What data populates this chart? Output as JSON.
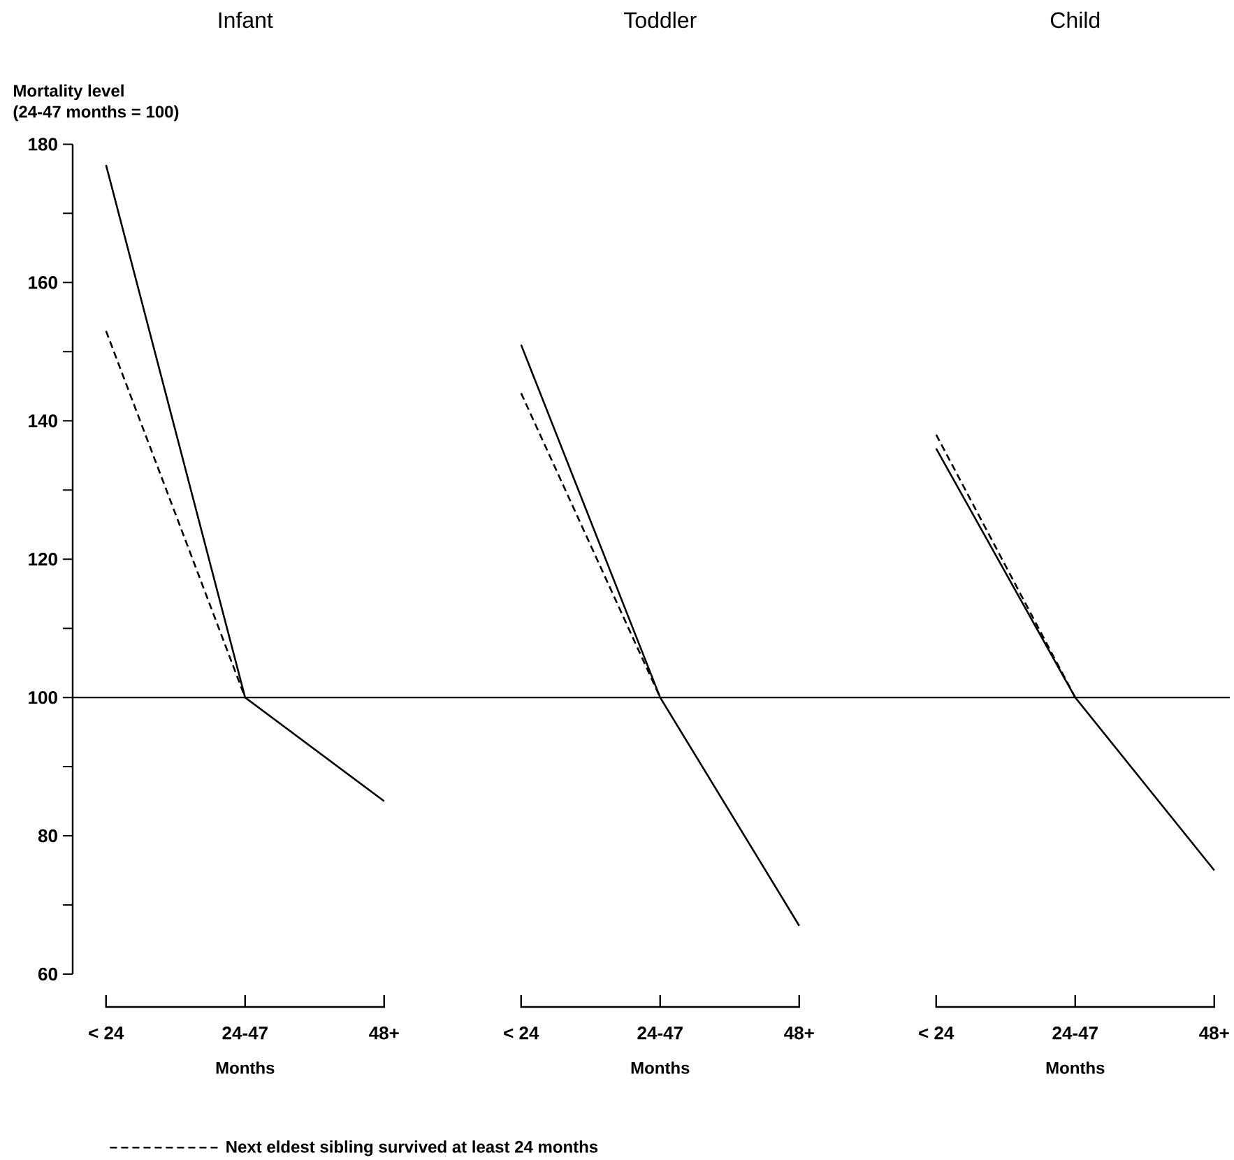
{
  "chart_data": [
    {
      "type": "line",
      "title": "Infant",
      "categories": [
        "< 24",
        "24-47",
        "48+"
      ],
      "xlabel": "Months",
      "ylabel": "Mortality level (24-47 months = 100)",
      "ylim": [
        60,
        180
      ],
      "yticks": [
        60,
        {
          "value": 70,
          "label": null
        },
        80,
        {
          "value": 90,
          "label": null
        },
        100,
        {
          "value": 110,
          "label": null
        },
        120,
        {
          "value": 130,
          "label": null
        },
        140,
        {
          "value": 150,
          "label": null
        },
        160,
        {
          "value": 170,
          "label": null
        },
        180
      ],
      "legend": "bottom",
      "ref_lines": [
        {
          "axis": "y",
          "value": 100
        }
      ],
      "series": [
        {
          "color": "#000000",
          "line_style": "solid",
          "values": [
            177,
            100,
            85
          ]
        },
        {
          "name": "Next eldest sibling survived at least 24 months",
          "color": "#000000",
          "line_style": "dashed",
          "values": [
            153,
            100,
            null
          ]
        }
      ]
    },
    {
      "type": "line",
      "title": "Toddler",
      "categories": [
        "< 24",
        "24-47",
        "48+"
      ],
      "xlabel": "Months",
      "ylim": [
        60,
        180
      ],
      "tick_labels": "x",
      "ref_lines": [
        {
          "axis": "y",
          "value": 100
        }
      ],
      "series": [
        {
          "color": "#000000",
          "line_style": "solid",
          "values": [
            151,
            100,
            67
          ]
        },
        {
          "color": "#000000",
          "line_style": "dashed",
          "values": [
            144,
            100,
            null
          ]
        }
      ]
    },
    {
      "type": "line",
      "title": "Child",
      "categories": [
        "< 24",
        "24-47",
        "48+"
      ],
      "xlabel": "Months",
      "ylim": [
        60,
        180
      ],
      "tick_labels": "x",
      "ref_lines": [
        {
          "axis": "y",
          "value": 100
        }
      ],
      "series": [
        {
          "color": "#000000",
          "line_style": "solid",
          "values": [
            136,
            100,
            75
          ]
        },
        {
          "color": "#000000",
          "line_style": "dashed",
          "values": [
            138,
            100,
            null
          ]
        }
      ]
    }
  ]
}
